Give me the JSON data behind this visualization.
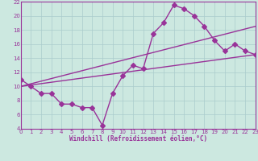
{
  "bg_color": "#cce8e0",
  "line_color": "#993399",
  "grid_color": "#aacccc",
  "xlabel": "Windchill (Refroidissement éolien,°C)",
  "xlim": [
    0,
    23
  ],
  "ylim": [
    4,
    22
  ],
  "yticks": [
    4,
    6,
    8,
    10,
    12,
    14,
    16,
    18,
    20,
    22
  ],
  "xticks": [
    0,
    1,
    2,
    3,
    4,
    5,
    6,
    7,
    8,
    9,
    10,
    11,
    12,
    13,
    14,
    15,
    16,
    17,
    18,
    19,
    20,
    21,
    22,
    23
  ],
  "series1_x": [
    0,
    1,
    2,
    3,
    4,
    5,
    6,
    7,
    8,
    9,
    10,
    11,
    12,
    13,
    14,
    15,
    16,
    17,
    18,
    19,
    20,
    21,
    22,
    23
  ],
  "series1_y": [
    11,
    10,
    9,
    9,
    7.5,
    7.5,
    7,
    7,
    4.5,
    9,
    11.5,
    13,
    12.5,
    17.5,
    19,
    21.5,
    21,
    20,
    18.5,
    16.5,
    15,
    16,
    15,
    14.5
  ],
  "series2_x": [
    0,
    23
  ],
  "series2_y": [
    10,
    14.5
  ],
  "series3_x": [
    0,
    23
  ],
  "series3_y": [
    10,
    18.5
  ],
  "markersize": 3,
  "linewidth": 1.0
}
